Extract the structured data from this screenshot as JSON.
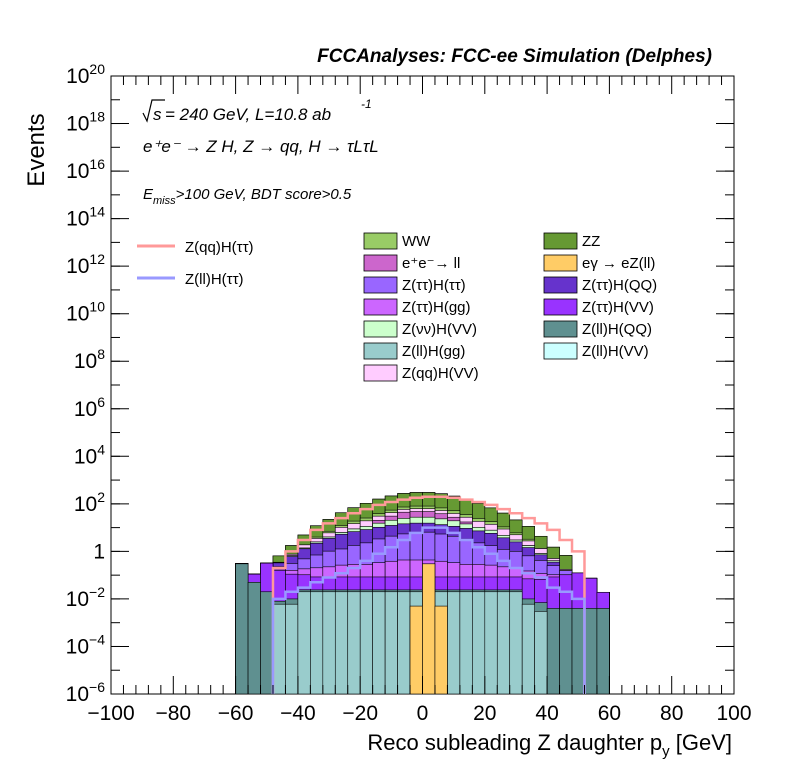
{
  "header": {
    "title": "FCCAnalyses: FCC-ee Simulation (Delphes)"
  },
  "labels": {
    "sqrt_s": "s",
    "energy_lumi": " = 240 GeV, L=10.8 ab",
    "lumi_exp": "-1",
    "process": "e⁺e⁻ → Z H, Z → qq, H → τLτL",
    "cut_e": "E",
    "cut_sub": "miss",
    "cut_rest": ">100 GeV, BDT score>0.5"
  },
  "chart_data": {
    "type": "histogram",
    "title": "",
    "xlabel": "Reco subleading Z daughter p",
    "xlabel_sub": "y",
    "xlabel_unit": " [GeV]",
    "ylabel": "Events",
    "xlim": [
      -100,
      100
    ],
    "ylim": [
      1e-06,
      1e+20
    ],
    "ylog": true,
    "bin_width": 4,
    "x_ticks": [
      "−100",
      "−80",
      "−60",
      "−40",
      "−20",
      "0",
      "20",
      "40",
      "60",
      "80",
      "100"
    ],
    "y_ticks": [
      {
        "base": "10",
        "exp": "−6",
        "value": 1e-06
      },
      {
        "base": "10",
        "exp": "−4",
        "value": 0.0001
      },
      {
        "base": "10",
        "exp": "−2",
        "value": 0.01
      },
      {
        "base": "1",
        "exp": "",
        "value": 1
      },
      {
        "base": "10",
        "exp": "2",
        "value": 100.0
      },
      {
        "base": "10",
        "exp": "4",
        "value": 10000.0
      },
      {
        "base": "10",
        "exp": "6",
        "value": 1000000.0
      },
      {
        "base": "10",
        "exp": "8",
        "value": 100000000.0
      },
      {
        "base": "10",
        "exp": "10",
        "value": 10000000000.0
      },
      {
        "base": "10",
        "exp": "12",
        "value": 1000000000000.0
      },
      {
        "base": "10",
        "exp": "14",
        "value": 100000000000000.0
      },
      {
        "base": "10",
        "exp": "16",
        "value": 1e+16
      },
      {
        "base": "10",
        "exp": "18",
        "value": 1e+18
      },
      {
        "base": "10",
        "exp": "20",
        "value": 1e+20
      }
    ],
    "stack_x_min": -60,
    "stack_x_max": 60,
    "stack_layers": [
      {
        "name": "Z(ll)H(gg)",
        "color": "#99cccc",
        "values": [
          1e-06,
          1e-06,
          1e-06,
          0.006,
          0.006,
          0.02,
          0.02,
          0.02,
          0.02,
          0.02,
          0.02,
          0.02,
          0.02,
          0.02,
          0.02,
          0.02,
          0.02,
          0.02,
          0.02,
          0.02,
          0.02,
          0.02,
          0.02,
          0.006,
          0.003,
          1e-06,
          1e-06,
          1e-06,
          1e-06,
          1e-06
        ]
      },
      {
        "name": "Z(ll)H(QQ)",
        "color": "#5f9090",
        "values": [
          0.3,
          0.05,
          0.02,
          0.002,
          0.004,
          0.004,
          0.004,
          0.004,
          0.004,
          0.004,
          0.004,
          0.004,
          0.004,
          0.004,
          0.004,
          0.004,
          0.004,
          0.004,
          0.004,
          0.004,
          0.004,
          0.004,
          0.004,
          0.004,
          0.004,
          0.004,
          0.004,
          0.004,
          0.004,
          0.004
        ]
      },
      {
        "name": "Z(ττ)H(VV)",
        "color": "#9933ff",
        "values": [
          0.015,
          0.06,
          0.3,
          0.15,
          0.1,
          0.08,
          0.06,
          0.06,
          0.06,
          0.06,
          0.06,
          0.06,
          0.06,
          0.06,
          0.06,
          0.06,
          0.06,
          0.06,
          0.06,
          0.06,
          0.06,
          0.06,
          0.06,
          0.06,
          0.06,
          0.08,
          0.1,
          0.12,
          0.07,
          0.015
        ]
      },
      {
        "name": "Z(ττ)H(gg)",
        "color": "#cc66ff",
        "values": [
          0,
          0,
          0,
          0.02,
          0.05,
          0.08,
          0.12,
          0.14,
          0.18,
          0.2,
          0.2,
          0.25,
          0.3,
          0.35,
          0.35,
          0.35,
          0.3,
          0.25,
          0.2,
          0.2,
          0.18,
          0.14,
          0.12,
          0.08,
          0.05,
          0.02,
          0,
          0,
          0,
          0
        ]
      },
      {
        "name": "Z(ττ)H(ττ)",
        "color": "#9966ff",
        "values": [
          0,
          0,
          0,
          0.05,
          0.15,
          0.3,
          0.5,
          0.8,
          1,
          1.5,
          2,
          3,
          4,
          5,
          6,
          6,
          5,
          4,
          3,
          2,
          1.5,
          1,
          0.8,
          0.5,
          0.3,
          0.15,
          0.05,
          0,
          0,
          0
        ]
      },
      {
        "name": "Z(ττ)H(QQ)",
        "color": "#6633cc",
        "values": [
          0,
          0,
          0,
          0.1,
          0.3,
          0.8,
          1.5,
          2.5,
          4,
          5,
          6,
          7,
          8,
          9,
          9,
          9,
          8,
          7,
          6,
          5,
          4,
          2.5,
          1.5,
          0.8,
          0.3,
          0.1,
          0,
          0,
          0,
          0
        ]
      },
      {
        "name": "Z(νν)H(VV)",
        "color": "#ccffcc",
        "values": [
          0,
          0,
          0,
          0,
          0.05,
          0.1,
          0.3,
          0.5,
          1,
          2,
          3,
          5,
          8,
          10,
          12,
          12,
          10,
          8,
          5,
          3,
          2,
          1,
          0.5,
          0.3,
          0.1,
          0.05,
          0,
          0,
          0,
          0
        ]
      },
      {
        "name": "e⁺e⁻→ ll",
        "color": "#cc66cc",
        "values": [
          0,
          0,
          0,
          0,
          0,
          0,
          0,
          0,
          0,
          0,
          0,
          5,
          10,
          20,
          20,
          20,
          15,
          8,
          3,
          0,
          0,
          0,
          0,
          0,
          0,
          0,
          0,
          0,
          0,
          0
        ]
      },
      {
        "name": "Z(qq)H(VV)",
        "color": "#ffccff",
        "values": [
          0,
          0,
          0,
          0.02,
          0.1,
          0.5,
          1,
          2,
          4,
          6,
          8,
          10,
          12,
          14,
          15,
          15,
          14,
          12,
          10,
          8,
          6,
          4,
          2,
          1,
          0.5,
          0.1,
          0.02,
          0,
          0,
          0
        ]
      },
      {
        "name": "WW",
        "color": "#99cc66",
        "values": [
          0,
          0,
          0,
          0,
          0,
          0,
          0.5,
          1,
          2,
          4,
          6,
          8,
          12,
          15,
          18,
          18,
          15,
          12,
          8,
          6,
          4,
          2,
          1,
          0.5,
          0,
          0,
          0,
          0,
          0,
          0
        ]
      },
      {
        "name": "ZZ",
        "color": "#669933",
        "values": [
          0,
          0,
          0,
          0.3,
          1,
          3,
          8,
          15,
          30,
          50,
          80,
          120,
          160,
          200,
          220,
          220,
          200,
          160,
          120,
          80,
          50,
          30,
          15,
          8,
          3,
          1,
          0.5,
          0,
          0,
          0
        ]
      },
      {
        "name": "Z(ll)H(VV)",
        "color": "#ccffff",
        "values": [
          0,
          0,
          0,
          0,
          0,
          0,
          0,
          0,
          0,
          0,
          0,
          0,
          0,
          0,
          0,
          0,
          0,
          0,
          0,
          0,
          0,
          0,
          0,
          0,
          0,
          0,
          0,
          0,
          0,
          0
        ]
      }
    ],
    "overlay_bins": [
      {
        "name": "eγ → eZ(ll)",
        "color": "#ffcc66",
        "x_range": [
          -4,
          4
        ],
        "values": [
          0.005,
          0.3
        ]
      },
      {
        "name": "eγ → eZ(ll)",
        "color": "#ffcc66",
        "x_range": [
          4,
          8
        ],
        "values": [
          0.005
        ]
      }
    ],
    "signal_lines": [
      {
        "name": "Z(qq)H(ττ)",
        "color": "#ff9999",
        "x_min": -48,
        "values": [
          0.2,
          1,
          3,
          8,
          15,
          25,
          40,
          60,
          90,
          120,
          150,
          180,
          200,
          200,
          180,
          150,
          120,
          90,
          60,
          40,
          25,
          15,
          8,
          3,
          1
        ]
      },
      {
        "name": "Z(ll)H(ττ)",
        "color": "#9999ff",
        "x_min": -48,
        "values": [
          0.01,
          0.02,
          0.03,
          0.05,
          0.08,
          0.12,
          0.2,
          0.4,
          0.8,
          1.5,
          3,
          6,
          10,
          10,
          6,
          3,
          1.5,
          0.8,
          0.4,
          0.2,
          0.12,
          0.08,
          0.03,
          0.02,
          0.01
        ]
      }
    ],
    "legend_signals": [
      {
        "label": "Z(qq)H(ττ)",
        "color": "#ff9999"
      },
      {
        "label": "Z(ll)H(ττ)",
        "color": "#9999ff"
      }
    ],
    "legend_backgrounds_col1": [
      {
        "label": "WW",
        "color": "#99cc66"
      },
      {
        "label": "e⁺e⁻→ ll",
        "color": "#cc66cc"
      },
      {
        "label": "Z(ττ)H(ττ)",
        "color": "#9966ff"
      },
      {
        "label": "Z(ττ)H(gg)",
        "color": "#cc66ff"
      },
      {
        "label": "Z(νν)H(VV)",
        "color": "#ccffcc"
      },
      {
        "label": "Z(ll)H(gg)",
        "color": "#99cccc"
      },
      {
        "label": "Z(qq)H(VV)",
        "color": "#ffccff"
      }
    ],
    "legend_backgrounds_col2": [
      {
        "label": "ZZ",
        "color": "#669933"
      },
      {
        "label": "eγ → eZ(ll)",
        "color": "#ffcc66"
      },
      {
        "label": "Z(ττ)H(QQ)",
        "color": "#6633cc"
      },
      {
        "label": "Z(ττ)H(VV)",
        "color": "#9933ff"
      },
      {
        "label": "Z(ll)H(QQ)",
        "color": "#5f9090"
      },
      {
        "label": "Z(ll)H(VV)",
        "color": "#ccffff"
      }
    ]
  }
}
